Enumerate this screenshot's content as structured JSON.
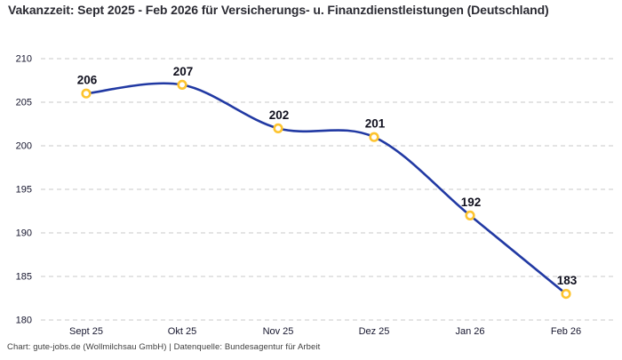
{
  "header": {
    "title": "Vakanzzeit: Sept 2025 - Feb 2026 für Versicherungs- u. Finanzdienstleistungen (Deutschland)"
  },
  "footer": {
    "credit": "Chart: gute-jobs.de (Wollmilchsau GmbH) | Datenquelle: Bundesagentur für Arbeit"
  },
  "chart_data": {
    "type": "line",
    "title": "Vakanzzeit: Sept 2025 - Feb 2026 für Versicherungs- u. Finanzdienstleistungen (Deutschland)",
    "categories": [
      "Sept 25",
      "Okt 25",
      "Nov 25",
      "Dez 25",
      "Jan 26",
      "Feb 26"
    ],
    "series": [
      {
        "name": "Vakanzzeit",
        "values": [
          206,
          207,
          202,
          201,
          192,
          183
        ]
      }
    ],
    "data_labels": [
      "206",
      "207",
      "202",
      "201",
      "192",
      "183"
    ],
    "xlabel": "",
    "ylabel": "",
    "ylim": [
      180,
      210
    ],
    "ytick_step": 5,
    "yticks": [
      180,
      185,
      190,
      195,
      200,
      205,
      210
    ],
    "grid": "horizontal-dashed",
    "legend": "none",
    "curve": "smooth",
    "colors": {
      "line": "#2139a3",
      "marker_ring": "#fdc42f",
      "marker_fill": "#ffffff",
      "grid": "#c8c8c8",
      "tick_label": "#16162e",
      "data_label": "#10101e"
    }
  }
}
